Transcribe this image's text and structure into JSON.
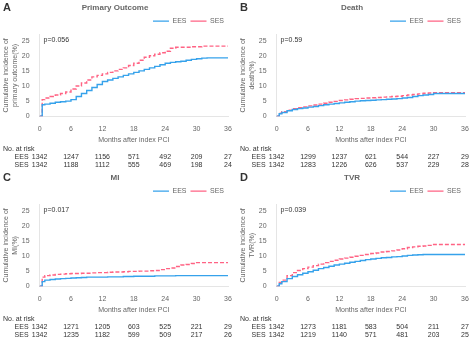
{
  "chart_data": [
    {
      "type": "step",
      "panel_label": "A",
      "title": "Primary Outcome",
      "xlabel": "Months after index PCI",
      "ylabel": "Cumulative incidence of primary outcome(%)",
      "annotation": "p=0.056",
      "x": [
        0,
        0.5,
        1,
        2,
        3,
        4,
        5,
        6,
        7,
        8,
        9,
        10,
        11,
        12,
        13,
        14,
        15,
        16,
        17,
        18,
        19,
        20,
        21,
        22,
        23,
        24,
        25,
        26,
        27,
        28,
        29,
        30,
        31,
        32,
        33,
        34,
        35,
        36
      ],
      "series": [
        {
          "name": "EES",
          "line_style": "solid",
          "values": [
            0,
            3.8,
            4.0,
            4.3,
            4.6,
            4.8,
            5.0,
            5.5,
            6.5,
            7.5,
            8.5,
            9.5,
            10.5,
            11.5,
            12.0,
            12.5,
            13.0,
            13.5,
            14.0,
            14.5,
            15.0,
            15.5,
            16.0,
            16.5,
            17.0,
            17.5,
            17.8,
            18.0,
            18.2,
            18.5,
            18.8,
            19.0,
            19.2,
            19.3,
            19.3,
            19.3,
            19.3,
            19.3
          ]
        },
        {
          "name": "SES",
          "line_style": "dashed",
          "values": [
            0,
            5.5,
            6.0,
            6.5,
            7.0,
            7.5,
            8.0,
            9.0,
            10.0,
            11.0,
            12.0,
            13.0,
            13.5,
            14.0,
            14.5,
            15.0,
            15.5,
            16.0,
            16.8,
            17.5,
            18.5,
            19.5,
            20.0,
            20.5,
            21.0,
            21.5,
            22.5,
            22.8,
            22.8,
            22.8,
            23.0,
            23.0,
            23.2,
            23.2,
            23.2,
            23.2,
            23.2,
            23.2
          ]
        }
      ],
      "xlim": [
        0,
        36
      ],
      "xticks": [
        0,
        6,
        12,
        18,
        24,
        30,
        36
      ],
      "ylim": [
        0,
        27
      ],
      "yticks": [
        0,
        5,
        10,
        15,
        20,
        25
      ],
      "grid": false,
      "legend": "upper right",
      "at_risk": {
        "label": "No. at risk",
        "x": [
          0,
          6,
          12,
          18,
          24,
          30,
          36
        ],
        "series": [
          {
            "name": "EES",
            "values": [
              1342,
              1247,
              1156,
              571,
              492,
              209,
              27
            ]
          },
          {
            "name": "SES",
            "values": [
              1342,
              1188,
              1112,
              555,
              469,
              198,
              24
            ]
          }
        ]
      }
    },
    {
      "type": "step",
      "panel_label": "B",
      "title": "Death",
      "xlabel": "Months after index PCI",
      "ylabel": "Cumulative incidence of death(%)",
      "annotation": "p=0.59",
      "x": [
        0,
        0.5,
        1,
        2,
        3,
        4,
        5,
        6,
        7,
        8,
        9,
        10,
        11,
        12,
        13,
        14,
        15,
        16,
        17,
        18,
        19,
        20,
        21,
        22,
        23,
        24,
        25,
        26,
        27,
        28,
        29,
        30,
        31,
        32,
        33,
        34,
        35,
        36
      ],
      "series": [
        {
          "name": "EES",
          "line_style": "solid",
          "values": [
            0,
            0.8,
            1.2,
            1.8,
            2.2,
            2.5,
            2.7,
            3.0,
            3.2,
            3.5,
            3.8,
            4.0,
            4.2,
            4.4,
            4.6,
            4.8,
            5.0,
            5.1,
            5.2,
            5.3,
            5.4,
            5.5,
            5.6,
            5.7,
            5.8,
            6.0,
            6.2,
            6.5,
            6.8,
            7.0,
            7.2,
            7.5,
            7.5,
            7.5,
            7.5,
            7.5,
            7.5,
            7.5
          ]
        },
        {
          "name": "SES",
          "line_style": "dashed",
          "values": [
            0,
            1.0,
            1.5,
            2.0,
            2.5,
            2.8,
            3.1,
            3.4,
            3.7,
            4.0,
            4.3,
            4.6,
            4.9,
            5.2,
            5.4,
            5.6,
            5.8,
            5.9,
            6.0,
            6.1,
            6.2,
            6.3,
            6.4,
            6.5,
            6.6,
            6.8,
            7.0,
            7.2,
            7.4,
            7.6,
            7.7,
            7.8,
            7.8,
            7.8,
            7.8,
            7.8,
            7.8,
            7.8
          ]
        }
      ],
      "xlim": [
        0,
        36
      ],
      "xticks": [
        0,
        6,
        12,
        18,
        24,
        30,
        36
      ],
      "ylim": [
        0,
        27
      ],
      "yticks": [
        0,
        5,
        10,
        15,
        20,
        25
      ],
      "grid": false,
      "legend": "upper right",
      "at_risk": {
        "label": "No. at risk",
        "x": [
          0,
          6,
          12,
          18,
          24,
          30,
          36
        ],
        "series": [
          {
            "name": "EES",
            "values": [
              1342,
              1299,
              1237,
              621,
              544,
              227,
              29
            ]
          },
          {
            "name": "SES",
            "values": [
              1342,
              1283,
              1226,
              626,
              537,
              229,
              28
            ]
          }
        ]
      }
    },
    {
      "type": "step",
      "panel_label": "C",
      "title": "MI",
      "xlabel": "Months after index PCI",
      "ylabel": "Cumulative incidence of MI(%)",
      "annotation": "p=0.017",
      "x": [
        0,
        0.5,
        1,
        2,
        3,
        4,
        5,
        6,
        7,
        8,
        9,
        10,
        11,
        12,
        13,
        14,
        15,
        16,
        17,
        18,
        19,
        20,
        21,
        22,
        23,
        24,
        25,
        26,
        27,
        28,
        29,
        30,
        31,
        32,
        33,
        34,
        35,
        36
      ],
      "series": [
        {
          "name": "EES",
          "line_style": "solid",
          "values": [
            0,
            1.5,
            2.0,
            2.2,
            2.4,
            2.5,
            2.6,
            2.7,
            2.8,
            2.9,
            3.0,
            3.0,
            3.0,
            3.0,
            3.1,
            3.1,
            3.1,
            3.2,
            3.2,
            3.3,
            3.3,
            3.3,
            3.3,
            3.4,
            3.4,
            3.4,
            3.4,
            3.5,
            3.5,
            3.5,
            3.5,
            3.5,
            3.5,
            3.5,
            3.5,
            3.5,
            3.5,
            3.5
          ]
        },
        {
          "name": "SES",
          "line_style": "dashed",
          "values": [
            0,
            3.0,
            3.5,
            3.7,
            3.9,
            4.0,
            4.1,
            4.2,
            4.2,
            4.3,
            4.3,
            4.4,
            4.5,
            4.5,
            4.6,
            4.7,
            4.7,
            4.8,
            4.9,
            4.9,
            5.0,
            5.0,
            5.1,
            5.2,
            5.5,
            5.8,
            6.0,
            6.5,
            7.0,
            7.2,
            7.5,
            7.8,
            7.8,
            7.8,
            7.8,
            7.8,
            7.8,
            7.8
          ]
        }
      ],
      "xlim": [
        0,
        36
      ],
      "xticks": [
        0,
        6,
        12,
        18,
        24,
        30,
        36
      ],
      "ylim": [
        0,
        27
      ],
      "yticks": [
        0,
        5,
        10,
        15,
        20,
        25
      ],
      "grid": false,
      "legend": "upper right",
      "at_risk": {
        "label": "No. at risk",
        "x": [
          0,
          6,
          12,
          18,
          24,
          30,
          36
        ],
        "series": [
          {
            "name": "EES",
            "values": [
              1342,
              1271,
              1205,
              603,
              525,
              221,
              29
            ]
          },
          {
            "name": "SES",
            "values": [
              1342,
              1235,
              1182,
              599,
              509,
              217,
              26
            ]
          }
        ]
      }
    },
    {
      "type": "step",
      "panel_label": "D",
      "title": "TVR",
      "xlabel": "Months after index PCI",
      "ylabel": "Cumulative incidence of TVR(%)",
      "annotation": "p=0.039",
      "x": [
        0,
        0.5,
        1,
        2,
        3,
        4,
        5,
        6,
        7,
        8,
        9,
        10,
        11,
        12,
        13,
        14,
        15,
        16,
        17,
        18,
        19,
        20,
        21,
        22,
        23,
        24,
        25,
        26,
        27,
        28,
        29,
        30,
        31,
        32,
        33,
        34,
        35,
        36
      ],
      "series": [
        {
          "name": "EES",
          "line_style": "solid",
          "values": [
            0,
            0.8,
            1.5,
            2.5,
            3.2,
            3.8,
            4.3,
            4.8,
            5.3,
            5.8,
            6.2,
            6.6,
            7.0,
            7.3,
            7.6,
            7.9,
            8.2,
            8.5,
            8.8,
            9.0,
            9.2,
            9.4,
            9.5,
            9.7,
            9.8,
            10.0,
            10.2,
            10.3,
            10.4,
            10.5,
            10.5,
            10.5,
            10.5,
            10.5,
            10.5,
            10.5,
            10.5,
            10.5
          ]
        },
        {
          "name": "SES",
          "line_style": "dashed",
          "values": [
            0,
            1.2,
            2.0,
            3.5,
            4.5,
            5.2,
            5.8,
            6.3,
            6.8,
            7.3,
            7.8,
            8.2,
            8.6,
            9.0,
            9.3,
            9.6,
            9.9,
            10.2,
            10.5,
            10.8,
            11.0,
            11.3,
            11.5,
            11.7,
            12.0,
            12.4,
            12.8,
            13.0,
            13.2,
            13.3,
            13.5,
            13.8,
            13.8,
            13.8,
            13.8,
            13.8,
            13.8,
            13.8
          ]
        }
      ],
      "xlim": [
        0,
        36
      ],
      "xticks": [
        0,
        6,
        12,
        18,
        24,
        30,
        36
      ],
      "ylim": [
        0,
        27
      ],
      "yticks": [
        0,
        5,
        10,
        15,
        20,
        25
      ],
      "grid": false,
      "legend": "upper right",
      "at_risk": {
        "label": "No. at risk",
        "x": [
          0,
          6,
          12,
          18,
          24,
          30,
          36
        ],
        "series": [
          {
            "name": "EES",
            "values": [
              1342,
              1273,
              1181,
              583,
              504,
              211,
              27
            ]
          },
          {
            "name": "SES",
            "values": [
              1342,
              1219,
              1140,
              571,
              481,
              203,
              25
            ]
          }
        ]
      }
    }
  ]
}
